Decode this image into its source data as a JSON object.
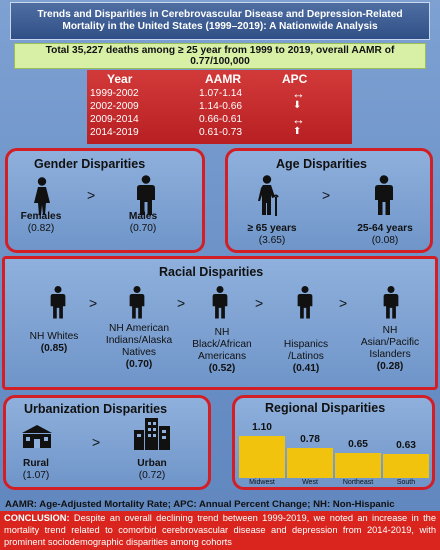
{
  "title": {
    "line1": "Trends and Disparities in Cerebrovascular Disease and Depression-Related",
    "line2": "Mortality in the United States (1999–2019): A Nationwide Analysis"
  },
  "summary": {
    "line1": "Total 35,227 deaths among ≥ 25 year from 1999 to 2019, overall AAMR of",
    "line2": "0.77/100,000"
  },
  "trend": {
    "headers": {
      "year": "Year",
      "aamr": "AAMR",
      "apc": "APC"
    },
    "rows": [
      {
        "year": "1999-2002",
        "aamr": "1.07-1.14",
        "apc": "↔"
      },
      {
        "year": "2002-2009",
        "aamr": "1.14-0.66",
        "apc": "⬇"
      },
      {
        "year": "2009-2014",
        "aamr": "0.66-0.61",
        "apc": "↔"
      },
      {
        "year": "2014-2019",
        "aamr": "0.61-0.73",
        "apc": "⬆"
      }
    ]
  },
  "gender": {
    "title": "Gender Disparities",
    "gt": ">",
    "female_label": "Females",
    "female_value": "(0.82)",
    "male_label": "Males",
    "male_value": "(0.70)"
  },
  "age": {
    "title": "Age Disparities",
    "gt": ">",
    "older_label": "≥ 65 years",
    "older_value": "(3.65)",
    "younger_label": "25-64 years",
    "younger_value": "(0.08)"
  },
  "race": {
    "title": "Racial Disparities",
    "gt": ">",
    "groups": [
      {
        "l1": "NH Whites",
        "l2": "",
        "l3": "",
        "value": "(0.85)"
      },
      {
        "l1": "NH American",
        "l2": "Indians/Alaska",
        "l3": "Natives",
        "value": "(0.70)"
      },
      {
        "l1": "NH",
        "l2": "Black/African",
        "l3": "Americans",
        "value": "(0.52)"
      },
      {
        "l1": "Hispanics",
        "l2": "/Latinos",
        "l3": "",
        "value": "(0.41)"
      },
      {
        "l1": "NH",
        "l2": "Asian/Pacific",
        "l3": "Islanders",
        "value": "(0.28)"
      }
    ]
  },
  "urban": {
    "title": "Urbanization Disparities",
    "gt": ">",
    "rural_label": "Rural",
    "rural_value": "(1.07)",
    "urban_label": "Urban",
    "urban_value": "(0.72)"
  },
  "region": {
    "title": "Regional Disparities"
  },
  "chart_data": {
    "type": "bar",
    "title": "Regional Disparities",
    "categories": [
      "Midwest",
      "West",
      "Northeast",
      "South"
    ],
    "values": [
      1.1,
      0.78,
      0.65,
      0.63
    ],
    "labels": [
      "1.10",
      "0.78",
      "0.65",
      "0.63"
    ],
    "color": "#f2c30c",
    "ylim": [
      0,
      1.1
    ]
  },
  "footer": {
    "abbr": "AAMR: Age-Adjusted Mortality Rate; APC: Annual Percent Change; NH: Non-Hispanic",
    "conclusion_key": "CONCLUSION:",
    "conclusion_text": " Despite an overall declining trend between 1999-2019, we noted an increase in the mortality trend related to comorbid cerebrovascular disease and depression from 2014-2019, with prominent sociodemographic disparities among cohorts"
  },
  "colors": {
    "accent_red": "#d21e25",
    "bar_yellow": "#f2c30c",
    "summary_green": "#d8f0a6"
  }
}
